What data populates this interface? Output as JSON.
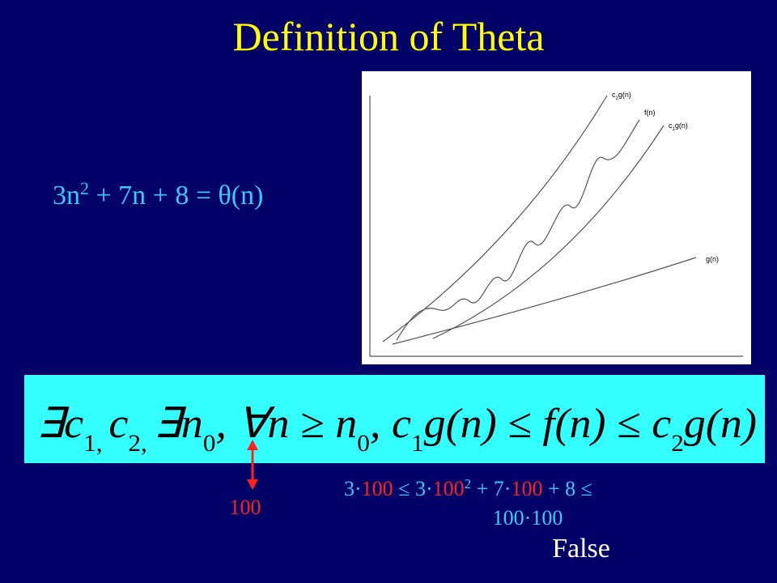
{
  "title": "Definition of  Theta",
  "equation": [
    "3n",
    "2",
    " + 7n  + 8 = θ(n)"
  ],
  "graph": {
    "labels": {
      "c2g": [
        "c",
        "2",
        "g(n)"
      ],
      "f": "f(n)",
      "c1g": [
        "c",
        "1",
        "g(n)"
      ],
      "g": "g(n)"
    }
  },
  "formula": [
    "∃c",
    "1, ",
    "c",
    "2, ",
    "∃n",
    "0",
    ", ∀n ≥ n",
    "0",
    ", c",
    "1",
    "g(n) ≤ f(n) ≤ c",
    "2",
    "g(n)"
  ],
  "marker": "100",
  "calculation": {
    "line1": [
      "3·",
      "100",
      " ≤ 3·",
      "100",
      "2",
      " + 7·",
      "100",
      "  + 8  ≤"
    ],
    "line2": "100·100"
  },
  "verdict": "False"
}
